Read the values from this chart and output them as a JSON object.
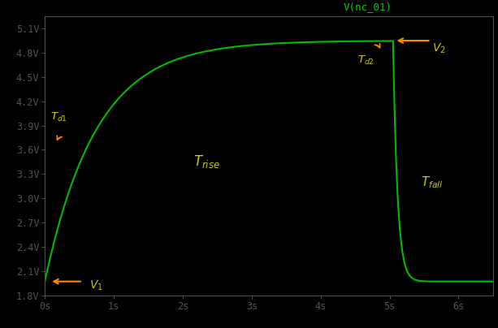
{
  "background_color": "#000000",
  "plot_area_color": "#000000",
  "border_color": "#555555",
  "line_color": "#00bb00",
  "line_width": 1.5,
  "orange": "#ff8800",
  "yellow": "#cccc00",
  "green_label": "#00cc00",
  "title": "V(nc_01)",
  "xlim": [
    0,
    6.5
  ],
  "ylim": [
    1.8,
    5.25
  ],
  "xticks": [
    0,
    1,
    2,
    3,
    4,
    5,
    6
  ],
  "xtick_labels": [
    "0s",
    "1s",
    "2s",
    "3s",
    "4s",
    "5s",
    "6s"
  ],
  "yticks": [
    1.8,
    2.1,
    2.4,
    2.7,
    3.0,
    3.3,
    3.6,
    3.9,
    4.2,
    4.5,
    4.8,
    5.1
  ],
  "ytick_labels": [
    "1.8V",
    "2.1V",
    "2.4V",
    "2.7V",
    "3.0V",
    "3.3V",
    "3.6V",
    "3.9V",
    "4.2V",
    "4.5V",
    "4.8V",
    "5.1V"
  ],
  "V1": 1.97,
  "V2": 4.95,
  "tau_rise": 0.75,
  "tau_fall": 0.065,
  "t_switch": 5.0,
  "t_fall_delay": 0.05,
  "tick_label_color": "#dddddd",
  "tick_label_fontsize": 8.5
}
